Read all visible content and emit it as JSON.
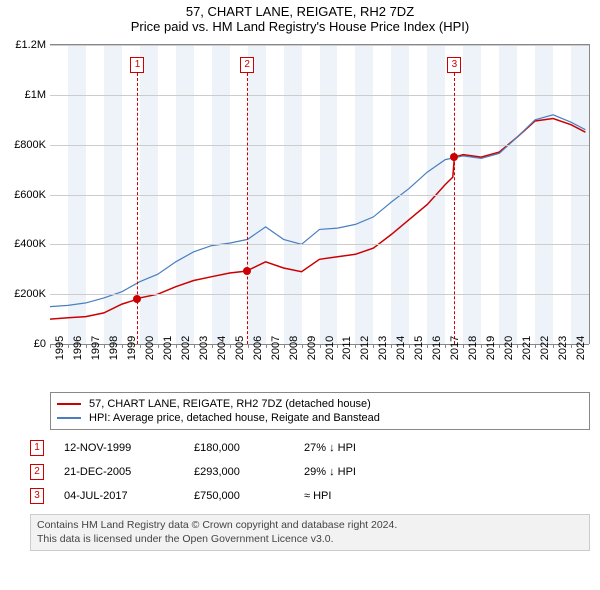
{
  "title": {
    "main": "57, CHART LANE, REIGATE, RH2 7DZ",
    "sub": "Price paid vs. HM Land Registry's House Price Index (HPI)"
  },
  "chart": {
    "type": "line",
    "ylim": [
      0,
      1200000
    ],
    "ytick_step": 200000,
    "ylabels": [
      "£0",
      "£200K",
      "£400K",
      "£600K",
      "£800K",
      "£1M",
      "£1.2M"
    ],
    "xlim": [
      1995,
      2025
    ],
    "xlabels": [
      "1995",
      "1996",
      "1997",
      "1998",
      "1999",
      "2000",
      "2001",
      "2002",
      "2003",
      "2004",
      "2005",
      "2006",
      "2007",
      "2008",
      "2009",
      "2010",
      "2011",
      "2012",
      "2013",
      "2014",
      "2015",
      "2016",
      "2017",
      "2018",
      "2019",
      "2020",
      "2021",
      "2022",
      "2023",
      "2024"
    ],
    "background_color": "#ffffff",
    "band_color": "#eef3fa",
    "grid_color": "#cccccc",
    "axis_color": "#888888",
    "series": [
      {
        "name": "57, CHART LANE, REIGATE, RH2 7DZ (detached house)",
        "color": "#cc0000",
        "line_width": 1.5,
        "data": [
          [
            1995,
            100000
          ],
          [
            1996,
            105000
          ],
          [
            1997,
            110000
          ],
          [
            1998,
            125000
          ],
          [
            1999,
            160000
          ],
          [
            1999.87,
            180000
          ],
          [
            2000,
            185000
          ],
          [
            2001,
            200000
          ],
          [
            2002,
            230000
          ],
          [
            2003,
            255000
          ],
          [
            2004,
            270000
          ],
          [
            2005,
            285000
          ],
          [
            2005.97,
            293000
          ],
          [
            2006,
            295000
          ],
          [
            2007,
            330000
          ],
          [
            2008,
            305000
          ],
          [
            2009,
            290000
          ],
          [
            2010,
            340000
          ],
          [
            2011,
            350000
          ],
          [
            2012,
            360000
          ],
          [
            2013,
            385000
          ],
          [
            2014,
            440000
          ],
          [
            2015,
            500000
          ],
          [
            2016,
            560000
          ],
          [
            2017,
            640000
          ],
          [
            2017.42,
            670000
          ],
          [
            2017.51,
            750000
          ],
          [
            2018,
            760000
          ],
          [
            2019,
            750000
          ],
          [
            2020,
            770000
          ],
          [
            2021,
            830000
          ],
          [
            2022,
            895000
          ],
          [
            2023,
            905000
          ],
          [
            2024,
            880000
          ],
          [
            2024.8,
            850000
          ]
        ]
      },
      {
        "name": "HPI: Average price, detached house, Reigate and Banstead",
        "color": "#4a7fbf",
        "line_width": 1.2,
        "data": [
          [
            1995,
            150000
          ],
          [
            1996,
            155000
          ],
          [
            1997,
            165000
          ],
          [
            1998,
            185000
          ],
          [
            1999,
            210000
          ],
          [
            2000,
            250000
          ],
          [
            2001,
            280000
          ],
          [
            2002,
            330000
          ],
          [
            2003,
            370000
          ],
          [
            2004,
            395000
          ],
          [
            2005,
            405000
          ],
          [
            2006,
            420000
          ],
          [
            2007,
            470000
          ],
          [
            2008,
            420000
          ],
          [
            2009,
            400000
          ],
          [
            2010,
            460000
          ],
          [
            2011,
            465000
          ],
          [
            2012,
            480000
          ],
          [
            2013,
            510000
          ],
          [
            2014,
            570000
          ],
          [
            2015,
            625000
          ],
          [
            2016,
            690000
          ],
          [
            2017,
            740000
          ],
          [
            2018,
            755000
          ],
          [
            2019,
            745000
          ],
          [
            2020,
            765000
          ],
          [
            2021,
            830000
          ],
          [
            2022,
            900000
          ],
          [
            2023,
            920000
          ],
          [
            2024,
            890000
          ],
          [
            2024.8,
            860000
          ]
        ]
      }
    ],
    "markers": [
      {
        "n": "1",
        "year": 1999.87,
        "price": 180000
      },
      {
        "n": "2",
        "year": 2005.97,
        "price": 293000
      },
      {
        "n": "3",
        "year": 2017.51,
        "price": 750000
      }
    ]
  },
  "legend": {
    "items": [
      {
        "color": "#cc0000",
        "label": "57, CHART LANE, REIGATE, RH2 7DZ (detached house)"
      },
      {
        "color": "#4a7fbf",
        "label": "HPI: Average price, detached house, Reigate and Banstead"
      }
    ]
  },
  "sales": [
    {
      "n": "1",
      "date": "12-NOV-1999",
      "price": "£180,000",
      "delta": "27% ↓ HPI"
    },
    {
      "n": "2",
      "date": "21-DEC-2005",
      "price": "£293,000",
      "delta": "29% ↓ HPI"
    },
    {
      "n": "3",
      "date": "04-JUL-2017",
      "price": "£750,000",
      "delta": "≈ HPI"
    }
  ],
  "footer": {
    "line1": "Contains HM Land Registry data © Crown copyright and database right 2024.",
    "line2": "This data is licensed under the Open Government Licence v3.0."
  }
}
